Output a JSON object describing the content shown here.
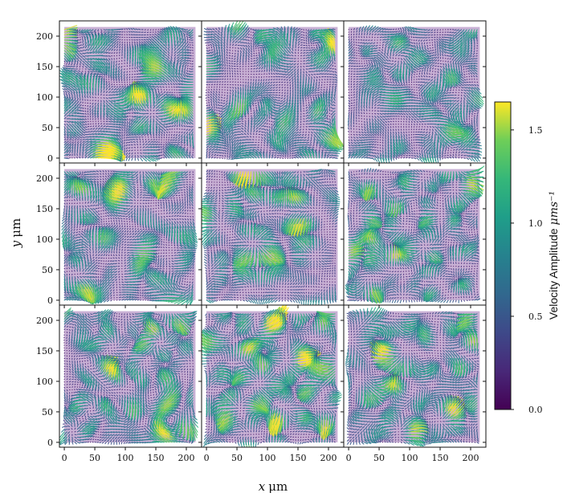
{
  "chart_data": {
    "type": "vector-field-grid",
    "grid": {
      "rows": 3,
      "cols": 3
    },
    "xlabel": "x μm",
    "ylabel": "y μm",
    "x_ticks": [
      0,
      50,
      100,
      150,
      200
    ],
    "y_ticks": [
      0,
      50,
      100,
      150,
      200
    ],
    "xlim": [
      -8,
      225
    ],
    "ylim": [
      -8,
      225
    ],
    "field_extent": [
      0,
      215
    ],
    "colorbar": {
      "label": "Velocity Amplitude μms⁻¹",
      "ticks": [
        0.0,
        0.5,
        1.0,
        1.5
      ],
      "range": [
        0,
        1.65
      ],
      "colormap": "viridis"
    },
    "colors": {
      "low": "#440154",
      "mid": "#21918c",
      "high": "#fde725"
    }
  },
  "text": {
    "xlabel_var": "x",
    "xlabel_unit": "μm",
    "ylabel_var": "y",
    "ylabel_unit": "μm",
    "cbar_label_main": "Velocity Amplitude",
    "cbar_label_unit": "μms⁻¹"
  }
}
